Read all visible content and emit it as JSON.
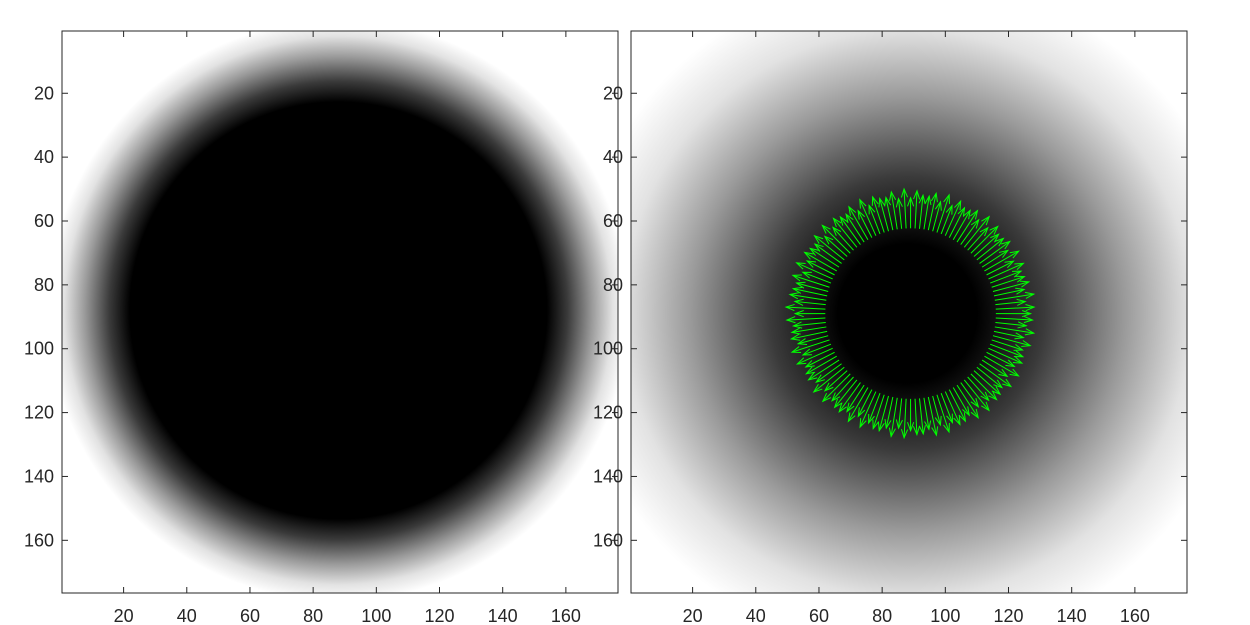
{
  "chart_data": [
    {
      "type": "heatmap",
      "title": "",
      "xlabel": "",
      "ylabel": "",
      "colormap": "gray",
      "xlim": [
        0.5,
        176.5
      ],
      "ylim": [
        0.5,
        176.5
      ],
      "y_direction": "reverse",
      "xticks": [
        20,
        40,
        60,
        80,
        100,
        120,
        140,
        160
      ],
      "yticks": [
        20,
        40,
        60,
        80,
        100,
        120,
        140,
        160
      ],
      "xtick_labels": [
        "20",
        "40",
        "60",
        "80",
        "100",
        "120",
        "140",
        "160"
      ],
      "ytick_labels": [
        "20",
        "40",
        "60",
        "80",
        "100",
        "120",
        "140",
        "160"
      ],
      "field": {
        "shape": "dark disk with smooth gray falloff to white",
        "center": [
          88,
          88
        ],
        "dark_radius": 66,
        "falloff_width": 26
      },
      "grid": false
    },
    {
      "type": "heatmap",
      "title": "",
      "xlabel": "",
      "ylabel": "",
      "colormap": "gray",
      "xlim": [
        0.5,
        176.5
      ],
      "ylim": [
        0.5,
        176.5
      ],
      "y_direction": "reverse",
      "xticks": [
        20,
        40,
        60,
        80,
        100,
        120,
        140,
        160
      ],
      "yticks": [
        20,
        40,
        60,
        80,
        100,
        120,
        140,
        160
      ],
      "xtick_labels": [
        "20",
        "40",
        "60",
        "80",
        "100",
        "120",
        "140",
        "160"
      ],
      "ytick_labels": [
        "20",
        "40",
        "60",
        "80",
        "100",
        "120",
        "140",
        "160"
      ],
      "field": {
        "shape": "dark disk with wide gray falloff to white",
        "center": [
          88,
          89
        ],
        "dark_radius": 22,
        "falloff_width": 85
      },
      "quiver": {
        "color": "#00ff00",
        "center": [
          89,
          89
        ],
        "base_radius": 27,
        "tip_radius": 38,
        "count": 120
      },
      "grid": false
    }
  ]
}
